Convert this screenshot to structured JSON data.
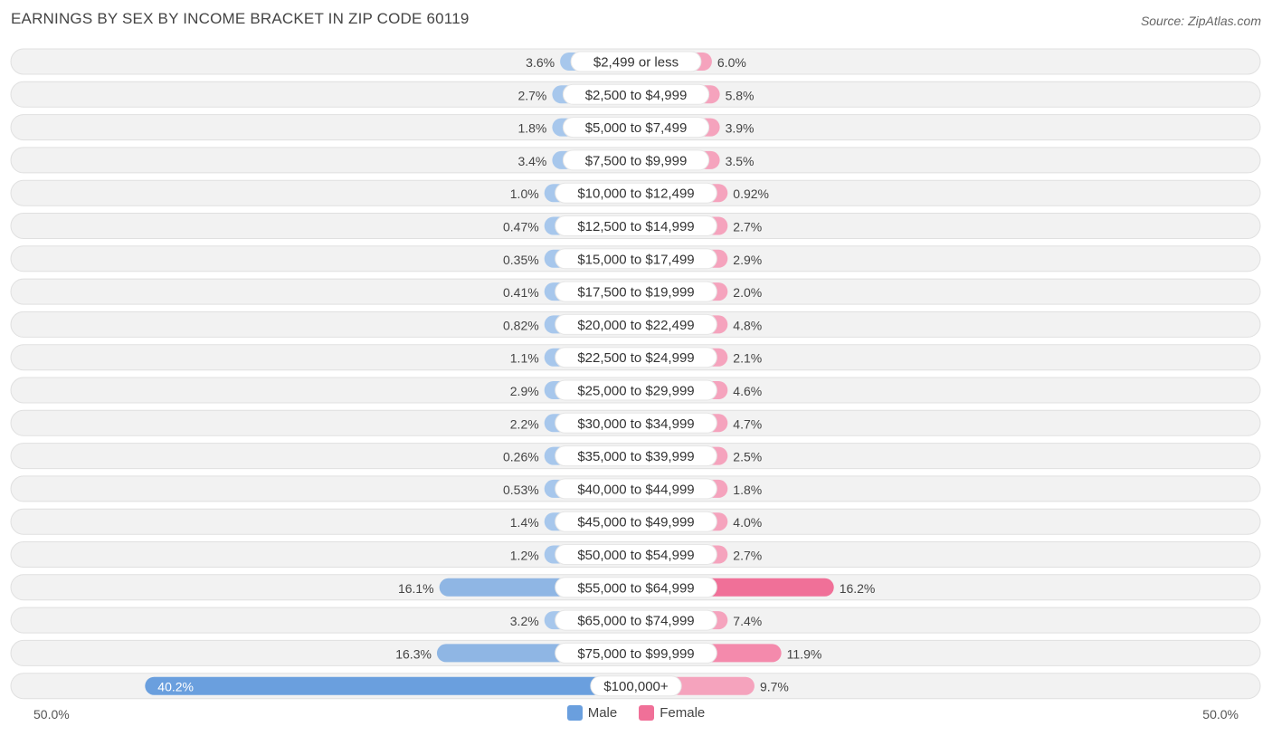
{
  "chart_data": {
    "type": "bar",
    "orientation": "horizontal-diverging",
    "title": "EARNINGS BY SEX BY INCOME BRACKET IN ZIP CODE 60119",
    "source": "Source: ZipAtlas.com",
    "categories": [
      "$2,499 or less",
      "$2,500 to $4,999",
      "$5,000 to $7,499",
      "$7,500 to $9,999",
      "$10,000 to $12,499",
      "$12,500 to $14,999",
      "$15,000 to $17,499",
      "$17,500 to $19,999",
      "$20,000 to $22,499",
      "$22,500 to $24,999",
      "$25,000 to $29,999",
      "$30,000 to $34,999",
      "$35,000 to $39,999",
      "$40,000 to $44,999",
      "$45,000 to $49,999",
      "$50,000 to $54,999",
      "$55,000 to $64,999",
      "$65,000 to $74,999",
      "$75,000 to $99,999",
      "$100,000+"
    ],
    "series": [
      {
        "name": "Male",
        "color": "#a7c7ec",
        "highlight_color": "#6a9fde",
        "values": [
          3.6,
          2.7,
          1.8,
          3.4,
          1.0,
          0.47,
          0.35,
          0.41,
          0.82,
          1.1,
          2.9,
          2.2,
          0.26,
          0.53,
          1.4,
          1.2,
          16.1,
          3.2,
          16.3,
          40.2
        ],
        "labels": [
          "3.6%",
          "2.7%",
          "1.8%",
          "3.4%",
          "1.0%",
          "0.47%",
          "0.35%",
          "0.41%",
          "0.82%",
          "1.1%",
          "2.9%",
          "2.2%",
          "0.26%",
          "0.53%",
          "1.4%",
          "1.2%",
          "16.1%",
          "3.2%",
          "16.3%",
          "40.2%"
        ]
      },
      {
        "name": "Female",
        "color": "#f5a3bd",
        "highlight_color": "#f07098",
        "values": [
          6.0,
          5.8,
          3.9,
          3.5,
          0.92,
          2.7,
          2.9,
          2.0,
          4.8,
          2.1,
          4.6,
          4.7,
          2.5,
          1.8,
          4.0,
          2.7,
          16.2,
          7.4,
          11.9,
          9.7
        ],
        "labels": [
          "6.0%",
          "5.8%",
          "3.9%",
          "3.5%",
          "0.92%",
          "2.7%",
          "2.9%",
          "2.0%",
          "4.8%",
          "2.1%",
          "4.6%",
          "4.7%",
          "2.5%",
          "1.8%",
          "4.0%",
          "2.7%",
          "16.2%",
          "7.4%",
          "11.9%",
          "9.7%"
        ]
      }
    ],
    "axis_min_label": "50.0%",
    "axis_max_label": "50.0%",
    "xlim": [
      -50,
      50
    ],
    "legend_position": "bottom-center"
  }
}
